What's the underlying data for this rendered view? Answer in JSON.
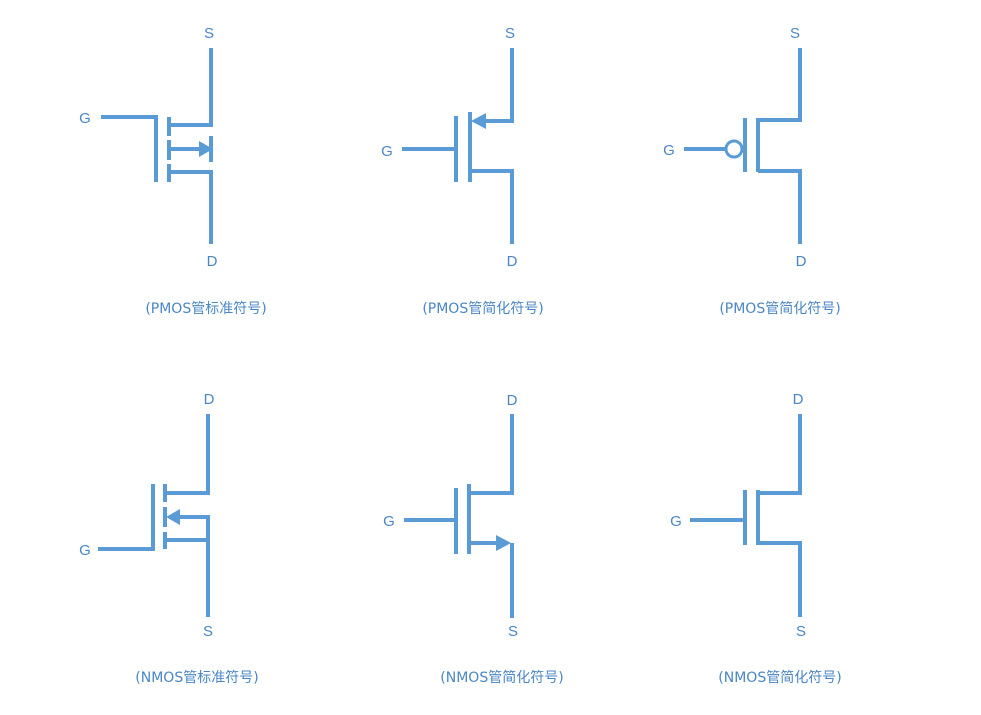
{
  "colors": {
    "wire": "#5b9bd5",
    "text": "#4a86c5",
    "background": "#ffffff"
  },
  "symbols": [
    {
      "type": "PMOS",
      "variant": "standard",
      "source": "S",
      "drain": "D",
      "gate": "G",
      "caption": "(PMOS管标准符号)"
    },
    {
      "type": "PMOS",
      "variant": "simplified",
      "source": "S",
      "drain": "D",
      "gate": "G",
      "caption": "(PMOS管简化符号)"
    },
    {
      "type": "PMOS",
      "variant": "bubble",
      "source": "S",
      "drain": "D",
      "gate": "G",
      "caption": "(PMOS管简化符号)"
    },
    {
      "type": "NMOS",
      "variant": "standard",
      "source": "S",
      "drain": "D",
      "gate": "G",
      "caption": "(NMOS管标准符号)"
    },
    {
      "type": "NMOS",
      "variant": "simplified",
      "source": "S",
      "drain": "D",
      "gate": "G",
      "caption": "(NMOS管简化符号)"
    },
    {
      "type": "NMOS",
      "variant": "plain",
      "source": "S",
      "drain": "D",
      "gate": "G",
      "caption": "(NMOS管简化符号)"
    }
  ]
}
